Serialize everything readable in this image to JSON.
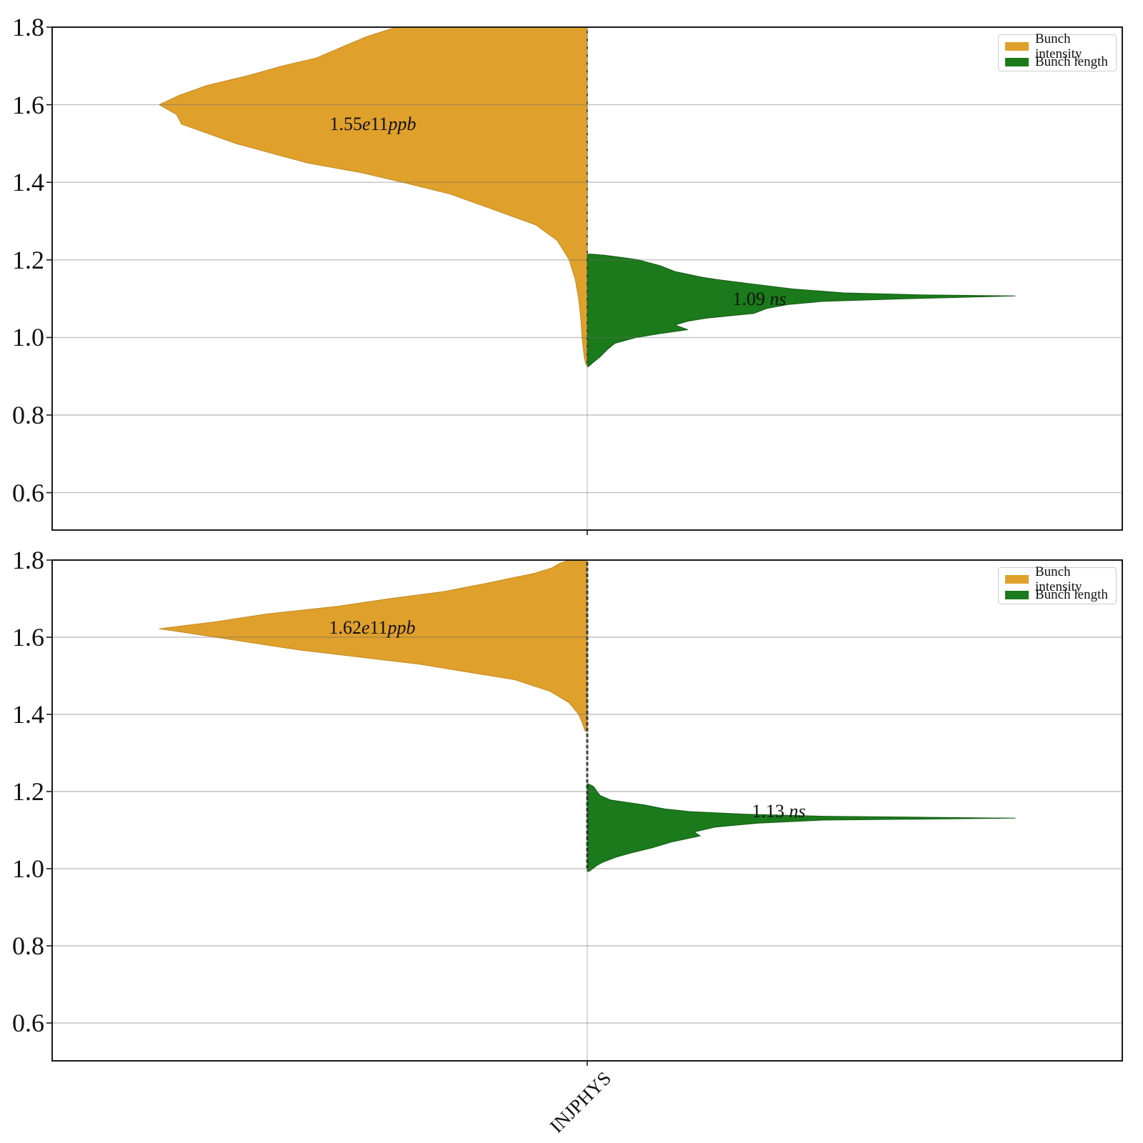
{
  "x_axis": {
    "category": "INJPHYS"
  },
  "legend": {
    "items": [
      {
        "label": "Bunch intensity",
        "color": "#DFA02C"
      },
      {
        "label": "Bunch length",
        "color": "#1B7A1B"
      }
    ]
  },
  "colors": {
    "intensity": "#DFA02C",
    "length": "#1B7A1B",
    "grid": "#b9b9b9",
    "spine": "#1a1a1a",
    "sticks": "#141414"
  },
  "chart_data": [
    {
      "type": "violin",
      "subplot": "top",
      "categories": [
        "INJPHYS"
      ],
      "ylim": [
        0.5,
        1.8
      ],
      "yticks": [
        "1.8",
        "1.6",
        "1.4",
        "1.2",
        "1.0",
        "0.8",
        "0.6"
      ],
      "grid": true,
      "legend_position": "upper right",
      "series": [
        {
          "name": "Bunch intensity",
          "side": "left",
          "color": "#DFA02C",
          "annotation": "1.55e11ppb",
          "annotation_parts": [
            [
              "1.55",
              false
            ],
            [
              "e",
              true
            ],
            [
              "11",
              false
            ],
            [
              "ppb",
              true
            ]
          ],
          "peak_value": 1.6,
          "value_range": [
            0.93,
            1.8
          ],
          "inner": "stick",
          "profile": [
            [
              1.8,
              0.446
            ],
            [
              1.775,
              0.517
            ],
            [
              1.75,
              0.571
            ],
            [
              1.72,
              0.634
            ],
            [
              1.7,
              0.713
            ],
            [
              1.675,
              0.793
            ],
            [
              1.65,
              0.888
            ],
            [
              1.625,
              0.952
            ],
            [
              1.6,
              1.0
            ],
            [
              1.575,
              0.96
            ],
            [
              1.55,
              0.948
            ],
            [
              1.5,
              0.821
            ],
            [
              1.45,
              0.654
            ],
            [
              1.425,
              0.529
            ],
            [
              1.4,
              0.432
            ],
            [
              1.37,
              0.321
            ],
            [
              1.33,
              0.22
            ],
            [
              1.29,
              0.12
            ],
            [
              1.25,
              0.07
            ],
            [
              1.2,
              0.042
            ],
            [
              1.15,
              0.028
            ],
            [
              1.1,
              0.02
            ],
            [
              1.05,
              0.015
            ],
            [
              1.0,
              0.012
            ],
            [
              0.95,
              0.007
            ],
            [
              0.93,
              0.003
            ]
          ]
        },
        {
          "name": "Bunch length",
          "side": "right",
          "color": "#1B7A1B",
          "annotation": "1.09 ns",
          "annotation_parts": [
            [
              "1.09 ",
              false
            ],
            [
              "ns",
              true
            ]
          ],
          "peak_value": 1.105,
          "value_range": [
            0.925,
            1.215
          ],
          "inner": "stick",
          "profile": [
            [
              1.215,
              0.01
            ],
            [
              1.212,
              0.04
            ],
            [
              1.205,
              0.09
            ],
            [
              1.2,
              0.12
            ],
            [
              1.185,
              0.17
            ],
            [
              1.17,
              0.205
            ],
            [
              1.155,
              0.27
            ],
            [
              1.15,
              0.3
            ],
            [
              1.14,
              0.37
            ],
            [
              1.125,
              0.48
            ],
            [
              1.115,
              0.6
            ],
            [
              1.11,
              0.78
            ],
            [
              1.107,
              1.0
            ],
            [
              1.1,
              0.75
            ],
            [
              1.093,
              0.55
            ],
            [
              1.085,
              0.47
            ],
            [
              1.075,
              0.42
            ],
            [
              1.062,
              0.39
            ],
            [
              1.05,
              0.28
            ],
            [
              1.042,
              0.235
            ],
            [
              1.032,
              0.205
            ],
            [
              1.02,
              0.235
            ],
            [
              1.01,
              0.17
            ],
            [
              1.0,
              0.115
            ],
            [
              0.985,
              0.065
            ],
            [
              0.97,
              0.048
            ],
            [
              0.95,
              0.03
            ],
            [
              0.935,
              0.013
            ],
            [
              0.925,
              0.003
            ]
          ]
        }
      ]
    },
    {
      "type": "violin",
      "subplot": "bottom",
      "categories": [
        "INJPHYS"
      ],
      "ylim": [
        0.5,
        1.8
      ],
      "yticks": [
        "1.8",
        "1.6",
        "1.4",
        "1.2",
        "1.0",
        "0.8",
        "0.6"
      ],
      "grid": true,
      "legend_position": "upper right",
      "series": [
        {
          "name": "Bunch intensity",
          "side": "left",
          "color": "#DFA02C",
          "annotation": "1.62e11ppb",
          "annotation_parts": [
            [
              "1.62",
              false
            ],
            [
              "e",
              true
            ],
            [
              "11",
              false
            ],
            [
              "ppb",
              true
            ]
          ],
          "peak_value": 1.62,
          "value_range": [
            1.357,
            1.8
          ],
          "inner": "stick",
          "profile": [
            [
              1.8,
              0.042
            ],
            [
              1.79,
              0.067
            ],
            [
              1.78,
              0.082
            ],
            [
              1.765,
              0.125
            ],
            [
              1.755,
              0.17
            ],
            [
              1.74,
              0.234
            ],
            [
              1.718,
              0.337
            ],
            [
              1.7,
              0.462
            ],
            [
              1.68,
              0.584
            ],
            [
              1.66,
              0.751
            ],
            [
              1.64,
              0.868
            ],
            [
              1.622,
              1.0
            ],
            [
              1.6,
              0.868
            ],
            [
              1.567,
              0.674
            ],
            [
              1.53,
              0.392
            ],
            [
              1.49,
              0.17
            ],
            [
              1.46,
              0.087
            ],
            [
              1.43,
              0.042
            ],
            [
              1.4,
              0.02
            ],
            [
              1.38,
              0.012
            ],
            [
              1.357,
              0.005
            ]
          ]
        },
        {
          "name": "Bunch length",
          "side": "right",
          "color": "#1B7A1B",
          "annotation": "1.13 ns",
          "annotation_parts": [
            [
              "1.13 ",
              false
            ],
            [
              "ns",
              true
            ]
          ],
          "peak_value": 1.131,
          "value_range": [
            0.993,
            1.22
          ],
          "inner": "stick",
          "profile": [
            [
              1.22,
              0.002
            ],
            [
              1.215,
              0.012
            ],
            [
              1.21,
              0.017
            ],
            [
              1.2,
              0.023
            ],
            [
              1.19,
              0.03
            ],
            [
              1.178,
              0.055
            ],
            [
              1.165,
              0.135
            ],
            [
              1.155,
              0.18
            ],
            [
              1.148,
              0.24
            ],
            [
              1.141,
              0.376
            ],
            [
              1.136,
              0.55
            ],
            [
              1.131,
              1.0
            ],
            [
              1.126,
              0.55
            ],
            [
              1.118,
              0.4
            ],
            [
              1.108,
              0.3
            ],
            [
              1.095,
              0.25
            ],
            [
              1.085,
              0.264
            ],
            [
              1.07,
              0.2
            ],
            [
              1.054,
              0.152
            ],
            [
              1.04,
              0.1
            ],
            [
              1.03,
              0.068
            ],
            [
              1.017,
              0.037
            ],
            [
              1.008,
              0.022
            ],
            [
              1.0,
              0.013
            ],
            [
              0.993,
              0.004
            ]
          ]
        }
      ]
    }
  ]
}
